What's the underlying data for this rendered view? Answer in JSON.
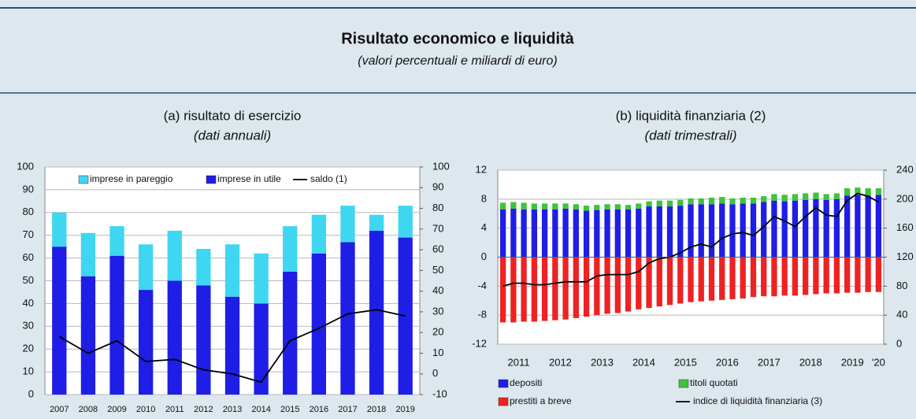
{
  "header": {
    "title": "Risultato economico e liquidità",
    "subtitle": "(valori percentuali e miliardi di euro)"
  },
  "chart_data": [
    {
      "type": "bar",
      "title": "(a) risultato di esercizio",
      "subtitle": "(dati annuali)",
      "categories": [
        "2007",
        "2008",
        "2009",
        "2010",
        "2011",
        "2012",
        "2013",
        "2014",
        "2015",
        "2016",
        "2017",
        "2018",
        "2019"
      ],
      "series": [
        {
          "name": "imprese in utile",
          "color": "#1e1ee6",
          "values": [
            65,
            52,
            61,
            46,
            50,
            48,
            43,
            40,
            54,
            62,
            67,
            72,
            69
          ]
        },
        {
          "name": "imprese in pareggio",
          "color": "#3fd6f2",
          "values": [
            15,
            19,
            13,
            20,
            22,
            16,
            23,
            22,
            20,
            17,
            16,
            7,
            14
          ]
        },
        {
          "name": "saldo (1)",
          "color": "#000000",
          "type": "line",
          "axis": "y2",
          "values": [
            18,
            10,
            16,
            6,
            7,
            2,
            0,
            -4,
            16,
            22,
            29,
            31,
            28
          ]
        }
      ],
      "ylim": [
        0,
        100
      ],
      "yticks": [
        0,
        10,
        20,
        30,
        40,
        50,
        60,
        70,
        80,
        90,
        100
      ],
      "y2lim": [
        -10,
        100
      ],
      "y2ticks": [
        -10,
        0,
        10,
        20,
        30,
        40,
        50,
        60,
        70,
        80,
        90,
        100
      ],
      "grid": true,
      "legend": "top"
    },
    {
      "type": "bar",
      "title": "(b) liquidità finanziaria (2)",
      "subtitle": "(dati trimestrali)",
      "categories": [
        "2011",
        null,
        null,
        null,
        "2012",
        null,
        null,
        null,
        "2013",
        null,
        null,
        null,
        "2014",
        null,
        null,
        null,
        "2015",
        null,
        null,
        null,
        "2016",
        null,
        null,
        null,
        "2017",
        null,
        null,
        null,
        "2018",
        null,
        null,
        null,
        "2019",
        null,
        null,
        null,
        "'20"
      ],
      "series": [
        {
          "name": "depositi",
          "color": "#1e1ee6",
          "values": [
            6.6,
            6.7,
            6.6,
            6.6,
            6.6,
            6.6,
            6.7,
            6.6,
            6.4,
            6.5,
            6.6,
            6.6,
            6.6,
            6.7,
            7.0,
            7.0,
            7.0,
            7.1,
            7.3,
            7.3,
            7.3,
            7.4,
            7.3,
            7.4,
            7.4,
            7.6,
            7.8,
            7.7,
            7.8,
            7.9,
            8.0,
            7.9,
            8.0,
            8.5,
            8.6,
            8.5,
            8.6
          ]
        },
        {
          "name": "titoli quotati",
          "color": "#3cc43c",
          "values": [
            0.9,
            0.9,
            0.9,
            0.8,
            0.8,
            0.8,
            0.7,
            0.7,
            0.7,
            0.7,
            0.7,
            0.7,
            0.6,
            0.7,
            0.7,
            0.8,
            0.8,
            0.8,
            0.8,
            0.8,
            0.9,
            0.9,
            0.8,
            0.8,
            0.8,
            0.8,
            0.9,
            0.9,
            0.9,
            0.9,
            0.9,
            0.8,
            0.8,
            1.0,
            1.0,
            1.0,
            0.9
          ]
        },
        {
          "name": "prestiti a breve",
          "color": "#ee2222",
          "values": [
            -9.0,
            -9.0,
            -8.9,
            -8.9,
            -8.8,
            -8.7,
            -8.6,
            -8.4,
            -8.2,
            -8.0,
            -7.8,
            -7.7,
            -7.5,
            -7.2,
            -7.0,
            -6.8,
            -6.6,
            -6.4,
            -6.2,
            -6.1,
            -6.0,
            -5.9,
            -5.8,
            -5.7,
            -5.5,
            -5.4,
            -5.4,
            -5.3,
            -5.3,
            -5.2,
            -5.1,
            -5.0,
            -5.0,
            -4.9,
            -4.9,
            -4.8,
            -4.8
          ]
        },
        {
          "name": "indice di liquidità finanziaria (3)",
          "color": "#000000",
          "type": "line",
          "axis": "y2",
          "values": [
            80,
            84,
            84,
            82,
            82,
            84,
            86,
            86,
            86,
            94,
            96,
            96,
            96,
            100,
            112,
            118,
            120,
            126,
            134,
            138,
            134,
            146,
            152,
            154,
            150,
            162,
            176,
            170,
            162,
            176,
            188,
            178,
            176,
            198,
            208,
            204,
            196
          ]
        }
      ],
      "ylim": [
        -12,
        12
      ],
      "yticks": [
        -12,
        -8,
        -4,
        0,
        4,
        8,
        12
      ],
      "y2lim": [
        0,
        240
      ],
      "y2ticks": [
        0,
        40,
        80,
        120,
        160,
        200,
        240
      ],
      "grid": true,
      "legend": "bottom"
    }
  ]
}
